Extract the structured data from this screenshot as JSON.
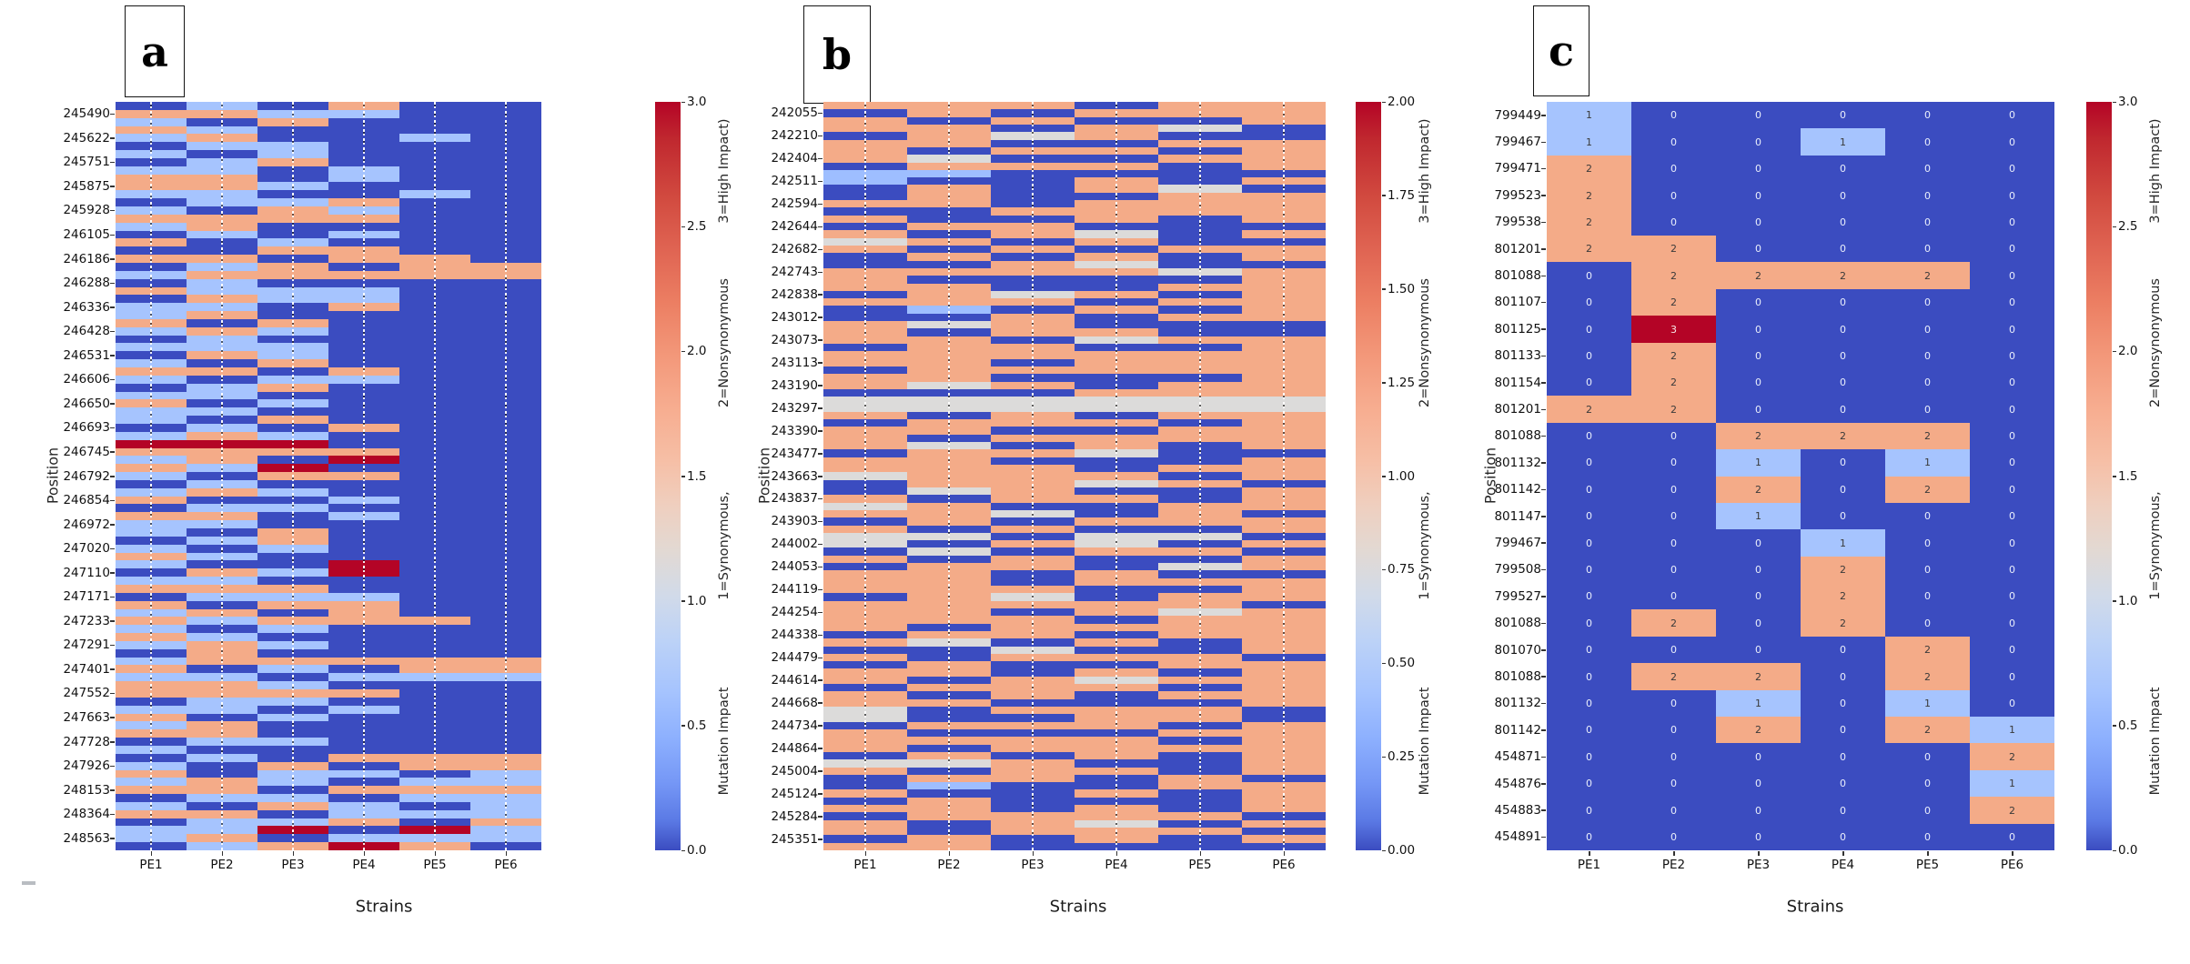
{
  "figure": {
    "xlabel": "Strains",
    "ylabel": "Position",
    "colorbar_label_segments": [
      "3=High Impact)",
      "2=Nonsynonymous",
      "1=Synonymous,",
      "Mutation Impact"
    ],
    "colors": {
      "0": "#3b4cc0",
      "1": "#a6c4fe",
      "2": "#f4ab88",
      "3": "#b40426",
      "G": "#dcdbda",
      "L": "#9ebeff"
    },
    "annotation_colors": {
      "light": "#e9eefb",
      "light_red": "#f6e9e9",
      "dark": "#3a3a3a"
    }
  },
  "chart_data": [
    {
      "type": "heatmap",
      "panel": "a",
      "tag": "a",
      "x_ticks": [
        "PE1",
        "PE2",
        "PE3",
        "PE4",
        "PE5",
        "PE6"
      ],
      "y_ticks": [
        "245490",
        "245622",
        "245751",
        "245875",
        "245928",
        "246105",
        "246186",
        "246288",
        "246336",
        "246428",
        "246531",
        "246606",
        "246650",
        "246693",
        "246745",
        "246792",
        "246854",
        "246972",
        "247020",
        "247110",
        "247171",
        "247233",
        "247291",
        "247401",
        "247552",
        "247663",
        "247728",
        "247926",
        "248153",
        "248364",
        "248563"
      ],
      "colorbar": {
        "vmin": 0.0,
        "vmax": 3.0,
        "ticks": [
          "3.0",
          "2.5",
          "2.0",
          "1.5",
          "1.0",
          "0.5",
          "0.0"
        ]
      },
      "encoding": {
        "0": 0,
        "1": 1,
        "2": 2,
        "3": 3
      },
      "rows": [
        "010200",
        "221100",
        "102000",
        "210000",
        "120010",
        "011000",
        "101000",
        "012000",
        "110100",
        "220100",
        "221000",
        "110010",
        "011200",
        "102100",
        "222200",
        "120000",
        "010100",
        "201000",
        "002200",
        "220220",
        "012022",
        "122222",
        "010000",
        "211100",
        "021100",
        "110200",
        "120000",
        "202000",
        "121000",
        "010000",
        "111000",
        "021000",
        "102000",
        "220200",
        "101100",
        "012000",
        "110000",
        "201000",
        "110000",
        "102000",
        "010200",
        "121000",
        "333000",
        "222200",
        "120300",
        "213000",
        "102200",
        "010000",
        "121000",
        "200100",
        "011000",
        "220100",
        "110000",
        "102000",
        "012000",
        "101000",
        "210000",
        "100300",
        "021300",
        "110000",
        "222000",
        "011100",
        "202200",
        "120200",
        "212220",
        "101000",
        "210000",
        "121000",
        "020000",
        "122222",
        "201022",
        "110111",
        "221000",
        "222200",
        "011000",
        "110100",
        "201000",
        "120000",
        "220000",
        "011000",
        "100000",
        "010222",
        "102022",
        "201101",
        "121011",
        "220222",
        "011011",
        "102101",
        "220111",
        "011202",
        "113031",
        "120111",
        "012320"
      ]
    },
    {
      "type": "heatmap",
      "panel": "b",
      "tag": "b",
      "x_ticks": [
        "PE1",
        "PE2",
        "PE3",
        "PE4",
        "PE5",
        "PE6"
      ],
      "y_ticks": [
        "242055",
        "242210",
        "242404",
        "242511",
        "242594",
        "242644",
        "242682",
        "242743",
        "242838",
        "243012",
        "243073",
        "243113",
        "243190",
        "243297",
        "243390",
        "243477",
        "243663",
        "243837",
        "243903",
        "244002",
        "244053",
        "244119",
        "244254",
        "244338",
        "244479",
        "244614",
        "244668",
        "244734",
        "244864",
        "245004",
        "245124",
        "245284",
        "245351"
      ],
      "colorbar": {
        "vmin": 0.0,
        "vmax": 2.0,
        "ticks": [
          "2.00",
          "1.75",
          "1.50",
          "1.25",
          "1.00",
          "0.75",
          "0.50",
          "0.25",
          "0.00"
        ]
      },
      "encoding": {
        "0": 0,
        "L": 0.5,
        "G": 1,
        "2": 2
      },
      "rows": [
        "222022",
        "020222",
        "202002",
        "2202G0",
        "02G200",
        "220022",
        "202202",
        "2G0022",
        "022202",
        "LL0000",
        "L00202",
        "0202G0",
        "020022",
        "220222",
        "002222",
        "200202",
        "022000",
        "202G02",
        "G20200",
        "202022",
        "020202",
        "002G00",
        "2222G2",
        "200002",
        "220022",
        "02G202",
        "222022",
        "0L0202",
        "002022",
        "2G2000",
        "202200",
        "220G22",
        "022002",
        "222222",
        "220222",
        "022222",
        "220002",
        "2G2022",
        "000222",
        "GGGGGG",
        "GGGGGG",
        "202022",
        "022202",
        "220022",
        "202222",
        "2G0202",
        "022G00",
        "220002",
        "222022",
        "G22202",
        "022G20",
        "0G2002",
        "202202",
        "G20022",
        "22G020",
        "020222",
        "202002",
        "GG0GG0",
        "G02G02",
        "0G0220",
        "202002",
        "0220G2",
        "220200",
        "220222",
        "222002",
        "02G022",
        "222220",
        "2202G2",
        "222022",
        "202222",
        "022022",
        "2G0202",
        "00G002",
        "202220",
        "020022",
        "220202",
        "202G22",
        "022202",
        "202022",
        "220002",
        "G02220",
        "G00220",
        "022202",
        "200022",
        "222202",
        "202222",
        "020202",
        "GG2002",
        "202202",
        "022020",
        "0L0022",
        "200202",
        "020002",
        "220202",
        "022220",
        "202G02",
        "202220",
        "020202",
        "220000"
      ]
    },
    {
      "type": "heatmap",
      "panel": "c",
      "tag": "c",
      "annotated": true,
      "x_ticks": [
        "PE1",
        "PE2",
        "PE3",
        "PE4",
        "PE5",
        "PE6"
      ],
      "y_ticks": [
        "799449",
        "799467",
        "799471",
        "799523",
        "799538",
        "801201",
        "801088",
        "801107",
        "801125",
        "801133",
        "801154",
        "801201",
        "801088",
        "801132",
        "801142",
        "801147",
        "799467",
        "799508",
        "799527",
        "801088",
        "801070",
        "801088",
        "801132",
        "801142",
        "454871",
        "454876",
        "454883",
        "454891"
      ],
      "colorbar": {
        "vmin": 0.0,
        "vmax": 3.0,
        "ticks": [
          "3.0",
          "2.5",
          "2.0",
          "1.5",
          "1.0",
          "0.5",
          "0.0"
        ]
      },
      "cells": [
        [
          1,
          0,
          0,
          0,
          0,
          0
        ],
        [
          1,
          0,
          0,
          1,
          0,
          0
        ],
        [
          2,
          0,
          0,
          0,
          0,
          0
        ],
        [
          2,
          0,
          0,
          0,
          0,
          0
        ],
        [
          2,
          0,
          0,
          0,
          0,
          0
        ],
        [
          2,
          2,
          0,
          0,
          0,
          0
        ],
        [
          0,
          2,
          2,
          2,
          2,
          0
        ],
        [
          0,
          2,
          0,
          0,
          0,
          0
        ],
        [
          0,
          3,
          0,
          0,
          0,
          0
        ],
        [
          0,
          2,
          0,
          0,
          0,
          0
        ],
        [
          0,
          2,
          0,
          0,
          0,
          0
        ],
        [
          2,
          2,
          0,
          0,
          0,
          0
        ],
        [
          0,
          0,
          2,
          2,
          2,
          0
        ],
        [
          0,
          0,
          1,
          0,
          1,
          0
        ],
        [
          0,
          0,
          2,
          0,
          2,
          0
        ],
        [
          0,
          0,
          1,
          0,
          0,
          0
        ],
        [
          0,
          0,
          0,
          1,
          0,
          0
        ],
        [
          0,
          0,
          0,
          2,
          0,
          0
        ],
        [
          0,
          0,
          0,
          2,
          0,
          0
        ],
        [
          0,
          2,
          0,
          2,
          0,
          0
        ],
        [
          0,
          0,
          0,
          0,
          2,
          0
        ],
        [
          0,
          2,
          2,
          0,
          2,
          0
        ],
        [
          0,
          0,
          1,
          0,
          1,
          0
        ],
        [
          0,
          0,
          2,
          0,
          2,
          1
        ],
        [
          0,
          0,
          0,
          0,
          0,
          2
        ],
        [
          0,
          0,
          0,
          0,
          0,
          1
        ],
        [
          0,
          0,
          0,
          0,
          0,
          2
        ],
        [
          0,
          0,
          0,
          0,
          0,
          0
        ]
      ]
    }
  ]
}
